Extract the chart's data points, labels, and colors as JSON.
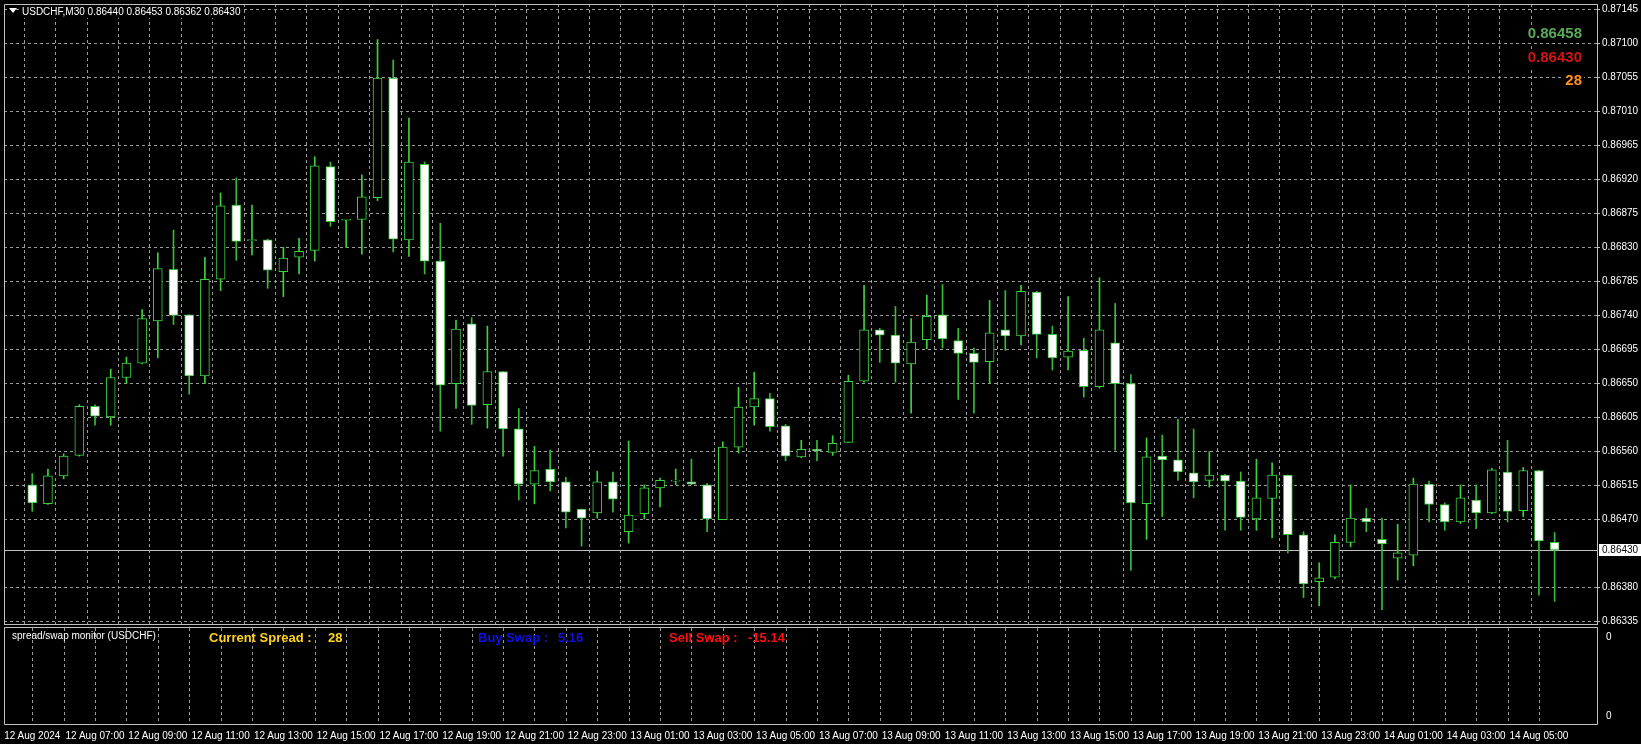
{
  "chart_data": {
    "type": "candlestick",
    "title": "USDCHF,M30 0.86440 0.86453 0.86362 0.86430",
    "colors": [
      "#36bd36",
      "#3cd23c",
      "#3cd23c",
      "#3cd23c",
      "#36bd36",
      "#3cd23c",
      "#3cd23c",
      "#3cd23c",
      "#3cd23c",
      "#36bd36",
      "#36bd36",
      "#3cd23c",
      "#3cd23c",
      "#36bd36",
      "#3cd23c",
      "#36bd36",
      "#3cd23c",
      "#3cd23c",
      "#3cd23c",
      "#36bd36",
      "#3cd23c",
      "#3cd23c",
      "#3cd23c",
      "#36bd36",
      "#3cd23c",
      "#36bd36",
      "#36bd36",
      "#3cd23c",
      "#36bd36",
      "#3cd23c",
      "#36bd36",
      "#36bd36",
      "#3cd23c",
      "#36bd36",
      "#36bd36",
      "#36bd36",
      "#3cd23c",
      "#36bd36",
      "#3cd23c",
      "#3cd23c",
      "#3cd23c",
      "#3cd23c",
      "#36bd36",
      "#36bd36",
      "#3cd23c",
      "#3cd23c",
      "#3cd23c",
      "#36bd36",
      "#36bd36",
      "#3cd23c",
      "#36bd36",
      "#3cd23c",
      "#3cd23c",
      "#3cd23c",
      "#36bd36",
      "#36bd36",
      "#3cd23c",
      "#3cd23c",
      "#36bd36",
      "#36bd36",
      "#36bd36",
      "#3cd23c",
      "#36bd36",
      "#3cd23c",
      "#36bd36",
      "#36bd36",
      "#3cd23c",
      "#36bd36",
      "#3cd23c",
      "#36bd36",
      "#36bd36",
      "#3cd23c",
      "#36bd36",
      "#36bd36",
      "#36bd36",
      "#3cd23c",
      "#36bd36",
      "#36bd36",
      "#3cd23c",
      "#3cd23c",
      "#36bd36",
      "#36bd36",
      "#3cd23c",
      "#3cd23c",
      "#3cd23c",
      "#36bd36",
      "#36bd36",
      "#3cd23c",
      "#3cd23c",
      "#36bd36",
      "#36bd36",
      "#3cd23c",
      "#36bd36",
      "#3cd23c",
      "#36bd36",
      "#3cd23c",
      "#36bd36",
      "#36bd36"
    ],
    "categories": [
      "12 Aug 2024",
      null,
      null,
      null,
      "12 Aug 07:00",
      null,
      null,
      null,
      "12 Aug 09:00",
      null,
      null,
      null,
      "12 Aug 11:00",
      null,
      null,
      null,
      "12 Aug 13:00",
      null,
      null,
      null,
      "12 Aug 15:00",
      null,
      null,
      null,
      "12 Aug 17:00",
      null,
      null,
      null,
      "12 Aug 19:00",
      null,
      null,
      null,
      "12 Aug 21:00",
      null,
      null,
      null,
      "12 Aug 23:00",
      null,
      null,
      null,
      "13 Aug 01:00",
      null,
      null,
      null,
      "13 Aug 03:00",
      null,
      null,
      null,
      "13 Aug 05:00",
      null,
      null,
      null,
      "13 Aug 07:00",
      null,
      null,
      null,
      "13 Aug 09:00",
      null,
      null,
      null,
      "13 Aug 11:00",
      null,
      null,
      null,
      "13 Aug 13:00",
      null,
      null,
      null,
      "13 Aug 15:00",
      null,
      null,
      null,
      "13 Aug 17:00",
      null,
      null,
      null,
      "13 Aug 19:00",
      null,
      null,
      null,
      "13 Aug 21:00",
      null,
      null,
      null,
      "13 Aug 23:00",
      null,
      null,
      null,
      "14 Aug 01:00",
      null,
      null,
      null,
      "14 Aug 03:00",
      null,
      null,
      null,
      "14 Aug 05:00",
      null
    ],
    "ohlc": [
      [
        0.86516,
        0.86531,
        0.86481,
        0.86492
      ],
      [
        0.86491,
        0.86537,
        0.8649,
        0.86528
      ],
      [
        0.86528,
        0.86557,
        0.86524,
        0.86554
      ],
      [
        0.86555,
        0.86622,
        0.86554,
        0.8662
      ],
      [
        0.8662,
        0.86622,
        0.86595,
        0.86607
      ],
      [
        0.86606,
        0.86669,
        0.86595,
        0.86658
      ],
      [
        0.86658,
        0.86685,
        0.8665,
        0.86677
      ],
      [
        0.86677,
        0.86748,
        0.86676,
        0.86736
      ],
      [
        0.86733,
        0.86823,
        0.86684,
        0.86802
      ],
      [
        0.86801,
        0.86853,
        0.86728,
        0.8674
      ],
      [
        0.86741,
        0.86741,
        0.86636,
        0.8666
      ],
      [
        0.8666,
        0.86817,
        0.8665,
        0.86788
      ],
      [
        0.86788,
        0.86902,
        0.86773,
        0.86885
      ],
      [
        0.86886,
        0.86922,
        0.86813,
        0.86838
      ],
      [
        0.86839,
        0.86886,
        0.8682,
        0.86839
      ],
      [
        0.8684,
        0.86841,
        0.86776,
        0.868
      ],
      [
        0.86798,
        0.8683,
        0.86765,
        0.86816
      ],
      [
        0.86817,
        0.86842,
        0.86795,
        0.86825
      ],
      [
        0.86826,
        0.8695,
        0.86812,
        0.86938
      ],
      [
        0.86937,
        0.86943,
        0.86858,
        0.86864
      ],
      [
        0.86866,
        0.86867,
        0.8683,
        0.86866
      ],
      [
        0.86867,
        0.86926,
        0.86821,
        0.86897
      ],
      [
        0.86896,
        0.87105,
        0.86892,
        0.87054
      ],
      [
        0.87054,
        0.87078,
        0.86824,
        0.86841
      ],
      [
        0.8684,
        0.87001,
        0.86818,
        0.86943
      ],
      [
        0.8694,
        0.86943,
        0.86795,
        0.86812
      ],
      [
        0.86812,
        0.86862,
        0.86587,
        0.86648
      ],
      [
        0.8665,
        0.86734,
        0.86617,
        0.86722
      ],
      [
        0.86729,
        0.86737,
        0.86596,
        0.86621
      ],
      [
        0.86622,
        0.86726,
        0.86591,
        0.86666
      ],
      [
        0.86666,
        0.86666,
        0.86554,
        0.8659
      ],
      [
        0.8659,
        0.86617,
        0.86496,
        0.86517
      ],
      [
        0.86517,
        0.86567,
        0.86491,
        0.86535
      ],
      [
        0.86537,
        0.86562,
        0.86508,
        0.8652
      ],
      [
        0.8652,
        0.86526,
        0.86459,
        0.8648
      ],
      [
        0.86484,
        0.86484,
        0.86435,
        0.86472
      ],
      [
        0.86479,
        0.86534,
        0.86472,
        0.8652
      ],
      [
        0.8652,
        0.86533,
        0.8648,
        0.86497
      ],
      [
        0.86454,
        0.86574,
        0.86439,
        0.86476
      ],
      [
        0.86478,
        0.86516,
        0.86471,
        0.86512
      ],
      [
        0.86512,
        0.86525,
        0.86487,
        0.86522
      ],
      [
        0.86521,
        0.86537,
        0.86516,
        0.86521
      ],
      [
        0.8652,
        0.8655,
        0.86516,
        0.86517
      ],
      [
        0.86516,
        0.86518,
        0.86454,
        0.86471
      ],
      [
        0.8647,
        0.86573,
        0.8647,
        0.86566
      ],
      [
        0.86566,
        0.86645,
        0.86558,
        0.86619
      ],
      [
        0.86619,
        0.86665,
        0.86595,
        0.8663
      ],
      [
        0.8663,
        0.86637,
        0.86587,
        0.86593
      ],
      [
        0.86594,
        0.86596,
        0.86548,
        0.86554
      ],
      [
        0.86553,
        0.86575,
        0.86552,
        0.86563
      ],
      [
        0.86563,
        0.86575,
        0.86548,
        0.86561
      ],
      [
        0.86559,
        0.86581,
        0.86555,
        0.86571
      ],
      [
        0.86572,
        0.86661,
        0.86572,
        0.86653
      ],
      [
        0.86653,
        0.8678,
        0.86652,
        0.86721
      ],
      [
        0.86721,
        0.86723,
        0.86678,
        0.86714
      ],
      [
        0.86714,
        0.86752,
        0.86652,
        0.86677
      ],
      [
        0.86676,
        0.86736,
        0.86611,
        0.86705
      ],
      [
        0.86708,
        0.86767,
        0.86696,
        0.86739
      ],
      [
        0.86741,
        0.86781,
        0.86697,
        0.86709
      ],
      [
        0.86707,
        0.86723,
        0.86629,
        0.8669
      ],
      [
        0.8669,
        0.86697,
        0.86611,
        0.86678
      ],
      [
        0.86679,
        0.8676,
        0.8665,
        0.86717
      ],
      [
        0.86721,
        0.86773,
        0.86694,
        0.86713
      ],
      [
        0.86713,
        0.8678,
        0.86701,
        0.86772
      ],
      [
        0.86771,
        0.86772,
        0.86684,
        0.86715
      ],
      [
        0.86715,
        0.86726,
        0.86668,
        0.86684
      ],
      [
        0.86685,
        0.86765,
        0.86668,
        0.86693
      ],
      [
        0.86694,
        0.8671,
        0.86632,
        0.86646
      ],
      [
        0.86646,
        0.8679,
        0.86644,
        0.86721
      ],
      [
        0.86704,
        0.86756,
        0.86562,
        0.8665
      ],
      [
        0.8665,
        0.86662,
        0.86403,
        0.86492
      ],
      [
        0.86491,
        0.86578,
        0.86444,
        0.86553
      ],
      [
        0.86554,
        0.86582,
        0.86474,
        0.86549
      ],
      [
        0.86549,
        0.86603,
        0.86522,
        0.86533
      ],
      [
        0.86532,
        0.8659,
        0.86499,
        0.8652
      ],
      [
        0.86522,
        0.8656,
        0.86513,
        0.86529
      ],
      [
        0.86529,
        0.8653,
        0.86456,
        0.86521
      ],
      [
        0.86521,
        0.86533,
        0.86456,
        0.86473
      ],
      [
        0.86471,
        0.8655,
        0.86456,
        0.86499
      ],
      [
        0.86498,
        0.86545,
        0.86446,
        0.86529
      ],
      [
        0.86529,
        0.86529,
        0.86426,
        0.8645
      ],
      [
        0.8645,
        0.86454,
        0.86367,
        0.86385
      ],
      [
        0.86388,
        0.86413,
        0.86356,
        0.86393
      ],
      [
        0.86394,
        0.8645,
        0.86392,
        0.8644
      ],
      [
        0.8644,
        0.86516,
        0.86434,
        0.86472
      ],
      [
        0.86472,
        0.86485,
        0.86454,
        0.86467
      ],
      [
        0.86444,
        0.86472,
        0.86351,
        0.86438
      ],
      [
        0.86419,
        0.86464,
        0.8639,
        0.86426
      ],
      [
        0.86423,
        0.86525,
        0.86409,
        0.86517
      ],
      [
        0.86517,
        0.86521,
        0.86467,
        0.8649
      ],
      [
        0.8649,
        0.86492,
        0.86456,
        0.86467
      ],
      [
        0.86467,
        0.86516,
        0.86465,
        0.86499
      ],
      [
        0.86496,
        0.86516,
        0.86458,
        0.86479
      ],
      [
        0.86479,
        0.86538,
        0.86478,
        0.86536
      ],
      [
        0.86533,
        0.86575,
        0.86467,
        0.86481
      ],
      [
        0.86482,
        0.86539,
        0.86474,
        0.86535
      ],
      [
        0.86535,
        0.86535,
        0.8637,
        0.86442
      ],
      [
        0.8644,
        0.86453,
        0.86362,
        0.8643
      ]
    ],
    "ylim": [
      0.86332,
      0.87152
    ],
    "yticks": [
      {
        "value": 0.86335,
        "label": "0.86335"
      },
      {
        "value": 0.8638,
        "label": "0.86380"
      },
      {
        "value": 0.8647,
        "label": "0.86470"
      },
      {
        "value": 0.86515,
        "label": "0.86515"
      },
      {
        "value": 0.8656,
        "label": "0.86560"
      },
      {
        "value": 0.86605,
        "label": "0.86605"
      },
      {
        "value": 0.8665,
        "label": "0.86650"
      },
      {
        "value": 0.86695,
        "label": "0.86695"
      },
      {
        "value": 0.8674,
        "label": "0.86740"
      },
      {
        "value": 0.86785,
        "label": "0.86785"
      },
      {
        "value": 0.8683,
        "label": "0.86830"
      },
      {
        "value": 0.86875,
        "label": "0.86875"
      },
      {
        "value": 0.8692,
        "label": "0.86920"
      },
      {
        "value": 0.86965,
        "label": "0.86965"
      },
      {
        "value": 0.8701,
        "label": "0.87010"
      },
      {
        "value": 0.87055,
        "label": "0.87055"
      },
      {
        "value": 0.871,
        "label": "0.87100"
      },
      {
        "value": 0.87145,
        "label": "0.87145"
      }
    ],
    "grid": true,
    "ref_lines": [
      {
        "axis": "y",
        "value": 0.8643,
        "label": "0.86430",
        "color": "#c0c0c0"
      }
    ],
    "annotations": [
      "0.86458",
      "0.86430",
      "28",
      "spread/swap monitor (USDCHF)",
      "Current Spread :",
      "28",
      "Buy Swap :",
      "5.16",
      "Sell Swap :",
      "-15.14",
      "0",
      "0"
    ]
  }
}
